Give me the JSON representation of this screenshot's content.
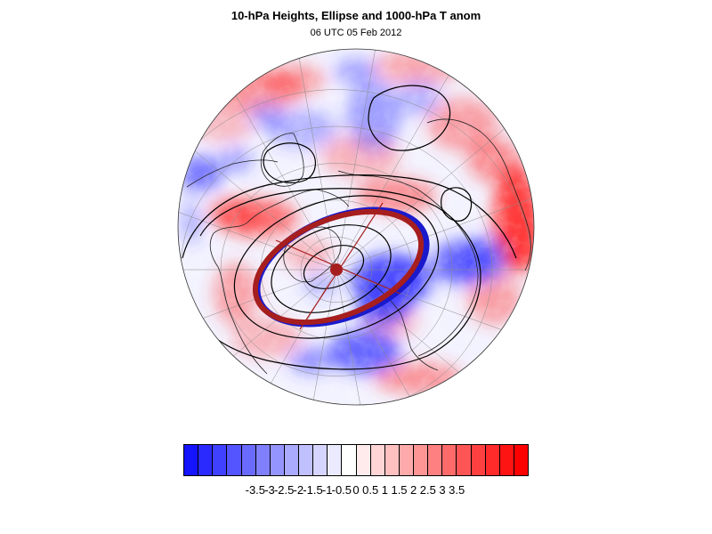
{
  "figure": {
    "title": "10-hPa Heights, Ellipse and 1000-hPa T anom",
    "subtitle": "06 UTC 05 Feb 2012"
  },
  "colorbar": {
    "labels": [
      "-3.5",
      "-3",
      "-2.5",
      "-2",
      "-1.5",
      "-1",
      "-0.5",
      "0",
      "0.5",
      "1",
      "1.5",
      "2",
      "2.5",
      "3",
      "3.5"
    ],
    "levels": [
      -3.5,
      -3,
      -2.5,
      -2,
      -1.5,
      -1,
      -0.5,
      0,
      0.5,
      1,
      1.5,
      2,
      2.5,
      3,
      3.5
    ],
    "colors": [
      "#1414ff",
      "#2a2aff",
      "#4040ff",
      "#5555ff",
      "#6a6aff",
      "#8080ff",
      "#9595ff",
      "#aaaaff",
      "#c0c0ff",
      "#d5d5ff",
      "#ebebff",
      "#ffffff",
      "#ffebeb",
      "#ffd5d5",
      "#ffc0c0",
      "#ffaaaa",
      "#ff9595",
      "#ff8080",
      "#ff6a6a",
      "#ff5555",
      "#ff4040",
      "#ff2a2a",
      "#ff1414",
      "#ff0000"
    ]
  },
  "map": {
    "projection": "polar orthographic (North Pole)",
    "ellipse_color": "#a61e1e",
    "ellipse_shadow_color": "#1a1acc",
    "height_contour_color": "#000000",
    "colors": {
      "warm": "#ff3a3a",
      "cold": "#3a3aff",
      "neutral": "#f4f4ff",
      "graticule": "#8a8a8a",
      "coastline": "#222222"
    }
  }
}
